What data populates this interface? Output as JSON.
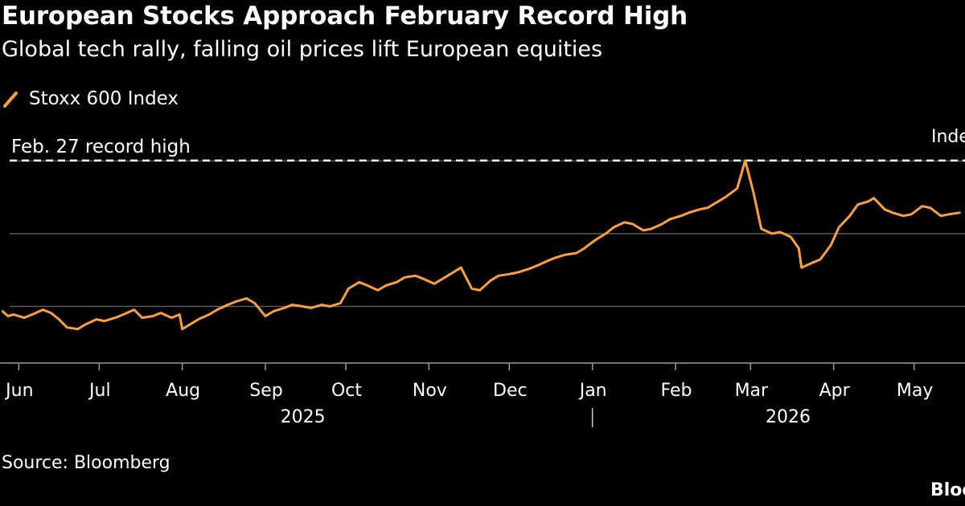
{
  "header": {
    "title": "European Stocks Approach February Record High",
    "subtitle": "Global tech rally, falling oil prices lift European equities"
  },
  "legend": {
    "label": "Stoxx 600 Index",
    "color": "#ffa040"
  },
  "footer": {
    "source": "Source: Bloomberg",
    "brand": "Bloo"
  },
  "chart_data": {
    "type": "line",
    "unit_label": "Inde",
    "annotation": {
      "label": "Feb. 27 record high",
      "value": 635.2,
      "style": "dashed"
    },
    "x_axis": {
      "range": [
        "2025-05-25",
        "2026-05-20"
      ],
      "month_ticks": [
        {
          "label": "Jun",
          "date": "2025-06-01"
        },
        {
          "label": "Jul",
          "date": "2025-07-01"
        },
        {
          "label": "Aug",
          "date": "2025-08-01"
        },
        {
          "label": "Sep",
          "date": "2025-09-01"
        },
        {
          "label": "Oct",
          "date": "2025-10-01"
        },
        {
          "label": "Nov",
          "date": "2025-11-01"
        },
        {
          "label": "Dec",
          "date": "2025-12-01"
        },
        {
          "label": "Jan",
          "date": "2026-01-01"
        },
        {
          "label": "Feb",
          "date": "2026-02-01"
        },
        {
          "label": "Mar",
          "date": "2026-03-01"
        },
        {
          "label": "Apr",
          "date": "2026-04-01"
        },
        {
          "label": "May",
          "date": "2026-05-01"
        }
      ],
      "year_labels": [
        {
          "label": "2025",
          "date": "2025-09-15"
        },
        {
          "label": "2026",
          "date": "2026-03-15"
        }
      ],
      "year_divider": "2026-01-01"
    },
    "y_axis": {
      "range": [
        510,
        660
      ],
      "gridlines": [
        545,
        590,
        635
      ],
      "grid": true
    },
    "series": [
      {
        "color": "#ffa040",
        "points": [
          [
            "2025-05-26",
            542
          ],
          [
            "2025-05-28",
            539
          ],
          [
            "2025-05-30",
            540
          ],
          [
            "2025-06-03",
            538
          ],
          [
            "2025-06-06",
            540
          ],
          [
            "2025-06-10",
            543
          ],
          [
            "2025-06-13",
            541
          ],
          [
            "2025-06-16",
            537
          ],
          [
            "2025-06-19",
            532
          ],
          [
            "2025-06-23",
            531
          ],
          [
            "2025-06-26",
            534
          ],
          [
            "2025-06-30",
            537
          ],
          [
            "2025-07-03",
            536
          ],
          [
            "2025-07-07",
            538
          ],
          [
            "2025-07-10",
            540
          ],
          [
            "2025-07-14",
            543
          ],
          [
            "2025-07-17",
            538
          ],
          [
            "2025-07-21",
            539
          ],
          [
            "2025-07-24",
            541
          ],
          [
            "2025-07-28",
            538
          ],
          [
            "2025-07-31",
            540
          ],
          [
            "2025-08-01",
            531
          ],
          [
            "2025-08-04",
            534
          ],
          [
            "2025-08-07",
            537
          ],
          [
            "2025-08-11",
            540
          ],
          [
            "2025-08-14",
            543
          ],
          [
            "2025-08-18",
            546
          ],
          [
            "2025-08-21",
            548
          ],
          [
            "2025-08-25",
            550
          ],
          [
            "2025-08-28",
            547
          ],
          [
            "2025-09-01",
            539
          ],
          [
            "2025-09-04",
            542
          ],
          [
            "2025-09-08",
            544
          ],
          [
            "2025-09-11",
            546
          ],
          [
            "2025-09-15",
            545
          ],
          [
            "2025-09-18",
            544
          ],
          [
            "2025-09-22",
            546
          ],
          [
            "2025-09-25",
            545
          ],
          [
            "2025-09-29",
            547
          ],
          [
            "2025-10-02",
            556
          ],
          [
            "2025-10-06",
            560
          ],
          [
            "2025-10-09",
            558
          ],
          [
            "2025-10-13",
            555
          ],
          [
            "2025-10-16",
            558
          ],
          [
            "2025-10-20",
            560
          ],
          [
            "2025-10-23",
            563
          ],
          [
            "2025-10-27",
            564
          ],
          [
            "2025-10-30",
            562
          ],
          [
            "2025-11-03",
            559
          ],
          [
            "2025-11-06",
            562
          ],
          [
            "2025-11-10",
            566
          ],
          [
            "2025-11-13",
            569
          ],
          [
            "2025-11-17",
            556
          ],
          [
            "2025-11-20",
            555
          ],
          [
            "2025-11-24",
            561
          ],
          [
            "2025-11-27",
            564
          ],
          [
            "2025-12-01",
            565
          ],
          [
            "2025-12-04",
            566
          ],
          [
            "2025-12-08",
            568
          ],
          [
            "2025-12-11",
            570
          ],
          [
            "2025-12-15",
            573
          ],
          [
            "2025-12-18",
            575
          ],
          [
            "2025-12-22",
            577
          ],
          [
            "2025-12-26",
            578
          ],
          [
            "2025-12-29",
            581
          ],
          [
            "2026-01-02",
            586
          ],
          [
            "2026-01-06",
            590
          ],
          [
            "2026-01-09",
            594
          ],
          [
            "2026-01-13",
            597
          ],
          [
            "2026-01-16",
            596
          ],
          [
            "2026-01-20",
            592
          ],
          [
            "2026-01-23",
            593
          ],
          [
            "2026-01-27",
            596
          ],
          [
            "2026-01-30",
            599
          ],
          [
            "2026-02-03",
            601
          ],
          [
            "2026-02-06",
            603
          ],
          [
            "2026-02-10",
            605
          ],
          [
            "2026-02-13",
            606
          ],
          [
            "2026-02-17",
            610
          ],
          [
            "2026-02-20",
            613
          ],
          [
            "2026-02-24",
            618
          ],
          [
            "2026-02-27",
            635.2
          ],
          [
            "2026-03-02",
            616
          ],
          [
            "2026-03-05",
            593
          ],
          [
            "2026-03-09",
            590
          ],
          [
            "2026-03-12",
            591
          ],
          [
            "2026-03-16",
            588
          ],
          [
            "2026-03-19",
            581
          ],
          [
            "2026-03-20",
            569
          ],
          [
            "2026-03-24",
            572
          ],
          [
            "2026-03-27",
            574
          ],
          [
            "2026-03-31",
            583
          ],
          [
            "2026-04-03",
            594
          ],
          [
            "2026-04-07",
            601
          ],
          [
            "2026-04-10",
            608
          ],
          [
            "2026-04-14",
            610
          ],
          [
            "2026-04-16",
            612
          ],
          [
            "2026-04-20",
            605
          ],
          [
            "2026-04-23",
            603
          ],
          [
            "2026-04-27",
            601
          ],
          [
            "2026-04-30",
            602
          ],
          [
            "2026-05-04",
            607
          ],
          [
            "2026-05-07",
            606
          ],
          [
            "2026-05-11",
            601
          ],
          [
            "2026-05-14",
            602
          ],
          [
            "2026-05-18",
            603
          ]
        ]
      }
    ]
  }
}
